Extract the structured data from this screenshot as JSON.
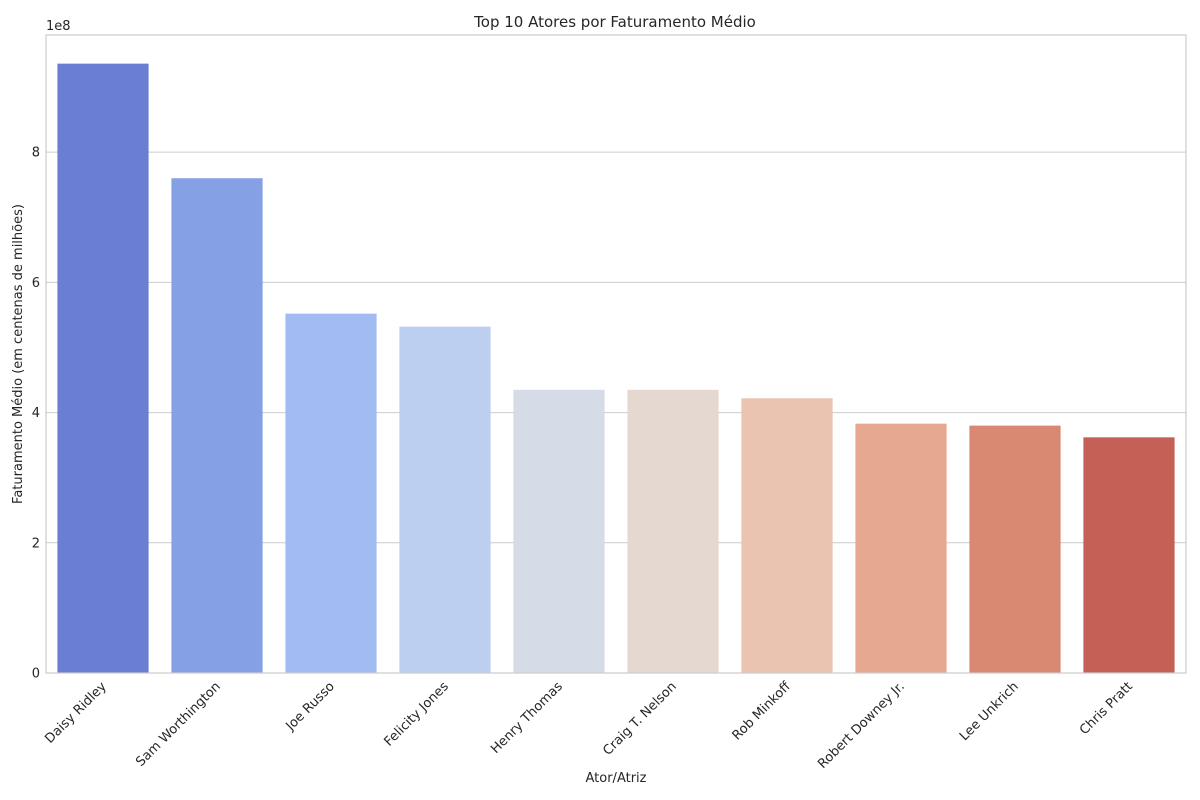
{
  "chart_data": {
    "type": "bar",
    "title": "Top 10 Atores por Faturamento Médio",
    "xlabel": "Ator/Atriz",
    "ylabel": "Faturamento Médio (em centenas de milhões)",
    "y_offset_label": "1e8",
    "ylim": [
      0,
      9.8
    ],
    "yticks": [
      0,
      2,
      4,
      6,
      8
    ],
    "ytick_labels": [
      "0",
      "2",
      "4",
      "6",
      "8"
    ],
    "grid": "horizontal",
    "categories": [
      "Daisy Ridley",
      "Sam Worthington",
      "Joe Russo",
      "Felicity Jones",
      "Henry Thomas",
      "Craig T. Nelson",
      "Rob Minkoff",
      "Robert Downey Jr.",
      "Lee Unkrich",
      "Chris Pratt"
    ],
    "values": [
      9.36,
      7.6,
      5.52,
      5.32,
      4.35,
      4.35,
      4.22,
      3.83,
      3.8,
      3.62
    ],
    "colors": [
      "#6a7fd3",
      "#86a0e6",
      "#a2bcf3",
      "#bccff0",
      "#d5dbe7",
      "#e5d8d1",
      "#eac4b1",
      "#e6a98f",
      "#d98872",
      "#c46055"
    ]
  }
}
